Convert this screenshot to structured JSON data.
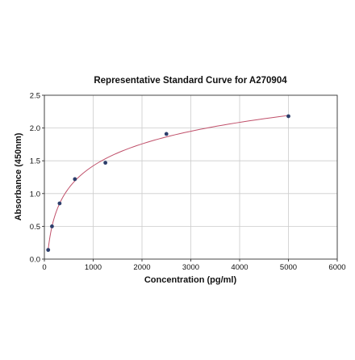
{
  "chart_data": {
    "type": "scatter",
    "title": "Representative Standard Curve for A270904",
    "xlabel": "Concentration (pg/ml)",
    "ylabel": "Absorbance (450nm)",
    "xlim": [
      0,
      6000
    ],
    "ylim": [
      0,
      2.5
    ],
    "xticks": [
      0,
      1000,
      2000,
      3000,
      4000,
      5000,
      6000
    ],
    "yticks": [
      0.0,
      0.5,
      1.0,
      1.5,
      2.0,
      2.5
    ],
    "xtick_labels": [
      "0",
      "1000",
      "2000",
      "3000",
      "4000",
      "5000",
      "6000"
    ],
    "ytick_labels": [
      "0.0",
      "0.5",
      "1.0",
      "1.5",
      "2.0",
      "2.5"
    ],
    "grid": true,
    "series": [
      {
        "kind": "points",
        "x": [
          78,
          156,
          312,
          625,
          1250,
          2500,
          5000
        ],
        "y": [
          0.14,
          0.5,
          0.85,
          1.22,
          1.47,
          1.91,
          2.18
        ],
        "color": "#2c3e6b"
      },
      {
        "kind": "fit-curve",
        "color": "#c0506a"
      }
    ]
  }
}
